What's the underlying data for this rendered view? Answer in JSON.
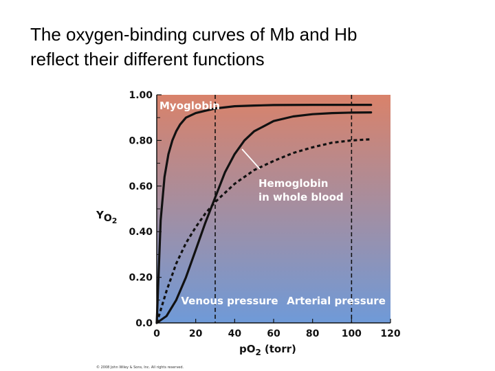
{
  "slide": {
    "title_line1": "The oxygen-binding curves of Mb and Hb",
    "title_line2": "reflect their different functions"
  },
  "chart_data": {
    "type": "line",
    "xlabel_main": "pO",
    "xlabel_sub": "2",
    "xlabel_unit": "(torr)",
    "ylabel_main": "Y",
    "ylabel_sub": "O",
    "ylabel_sub2": "2",
    "xlim": [
      0,
      120
    ],
    "ylim": [
      0,
      1.0
    ],
    "xticks": [
      "0",
      "20",
      "40",
      "60",
      "80",
      "100",
      "120"
    ],
    "yticks": [
      "0.0",
      "0.20",
      "0.40",
      "0.60",
      "0.80",
      "1.00"
    ],
    "colors": {
      "top": "#d9826a",
      "bottom": "#6f9ad8"
    },
    "series": [
      {
        "name": "Myoglobin",
        "style": "solid",
        "x": [
          0,
          2,
          4,
          6,
          8,
          10,
          12,
          15,
          20,
          25,
          30,
          40,
          50,
          60,
          80,
          100,
          110
        ],
        "y": [
          0,
          0.45,
          0.64,
          0.74,
          0.8,
          0.84,
          0.87,
          0.9,
          0.92,
          0.93,
          0.94,
          0.95,
          0.953,
          0.955,
          0.956,
          0.956,
          0.956
        ]
      },
      {
        "name": "Hemoglobin",
        "name2": "in whole blood",
        "style": "solid",
        "x": [
          0,
          5,
          10,
          15,
          20,
          25,
          30,
          35,
          40,
          45,
          50,
          60,
          70,
          80,
          90,
          100,
          110
        ],
        "y": [
          0,
          0.03,
          0.1,
          0.2,
          0.32,
          0.44,
          0.55,
          0.66,
          0.74,
          0.8,
          0.84,
          0.885,
          0.905,
          0.915,
          0.92,
          0.922,
          0.923
        ]
      },
      {
        "name": "",
        "style": "dashed",
        "x": [
          0,
          5,
          10,
          15,
          20,
          25,
          30,
          40,
          50,
          60,
          70,
          80,
          90,
          100,
          110
        ],
        "y": [
          0,
          0.14,
          0.26,
          0.35,
          0.42,
          0.48,
          0.53,
          0.61,
          0.67,
          0.71,
          0.745,
          0.77,
          0.79,
          0.8,
          0.805
        ]
      }
    ],
    "vlines": [
      {
        "x": 30,
        "label": "Venous pressure"
      },
      {
        "x": 100,
        "label": "Arterial pressure"
      }
    ]
  },
  "copyright": "© 2008 John Wiley & Sons, Inc. All rights reserved."
}
